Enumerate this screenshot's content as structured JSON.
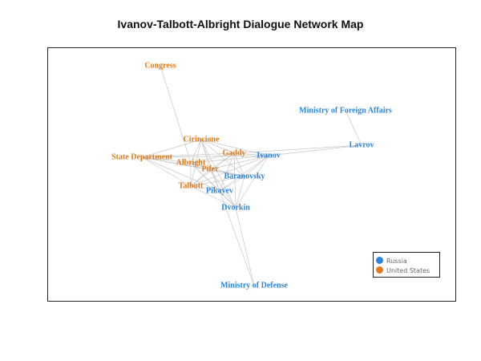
{
  "title": "Ivanov-Talbott-Albright Dialogue Network Map",
  "colors": {
    "russia": "#2a86e0",
    "united_states": "#e07a1a",
    "edge": "#c8c8c8"
  },
  "legend": [
    {
      "label": "Russia",
      "group": "russia"
    },
    {
      "label": "United States",
      "group": "united_states"
    }
  ],
  "nodes": [
    {
      "id": "congress",
      "label": "Congress",
      "group": "united_states"
    },
    {
      "id": "mfa",
      "label": "Ministry of Foreign Affairs",
      "group": "russia"
    },
    {
      "id": "lavrov",
      "label": "Lavrov",
      "group": "russia"
    },
    {
      "id": "cirincione",
      "label": "Cirincione",
      "group": "united_states"
    },
    {
      "id": "gaddy",
      "label": "Gaddy",
      "group": "united_states"
    },
    {
      "id": "ivanov",
      "label": "Ivanov",
      "group": "russia"
    },
    {
      "id": "state",
      "label": "State Department",
      "group": "united_states"
    },
    {
      "id": "albright",
      "label": "Albright",
      "group": "united_states"
    },
    {
      "id": "pifer",
      "label": "Pifer",
      "group": "united_states"
    },
    {
      "id": "baranovsky",
      "label": "Baranovsky",
      "group": "russia"
    },
    {
      "id": "talbott",
      "label": "Talbott",
      "group": "united_states"
    },
    {
      "id": "pikayev",
      "label": "Pikayev",
      "group": "russia"
    },
    {
      "id": "dvorkin",
      "label": "Dvorkin",
      "group": "russia"
    },
    {
      "id": "mod",
      "label": "Ministry of Defense",
      "group": "russia"
    }
  ],
  "edges": [
    [
      "congress",
      "albright"
    ],
    [
      "mfa",
      "lavrov"
    ],
    [
      "lavrov",
      "ivanov"
    ],
    [
      "lavrov",
      "gaddy"
    ],
    [
      "mod",
      "dvorkin"
    ],
    [
      "mod",
      "pikayev"
    ],
    [
      "cirincione",
      "gaddy"
    ],
    [
      "cirincione",
      "ivanov"
    ],
    [
      "cirincione",
      "state"
    ],
    [
      "cirincione",
      "albright"
    ],
    [
      "cirincione",
      "pifer"
    ],
    [
      "cirincione",
      "baranovsky"
    ],
    [
      "cirincione",
      "talbott"
    ],
    [
      "cirincione",
      "pikayev"
    ],
    [
      "cirincione",
      "dvorkin"
    ],
    [
      "gaddy",
      "ivanov"
    ],
    [
      "gaddy",
      "state"
    ],
    [
      "gaddy",
      "albright"
    ],
    [
      "gaddy",
      "pifer"
    ],
    [
      "gaddy",
      "baranovsky"
    ],
    [
      "gaddy",
      "talbott"
    ],
    [
      "gaddy",
      "pikayev"
    ],
    [
      "gaddy",
      "dvorkin"
    ],
    [
      "ivanov",
      "state"
    ],
    [
      "ivanov",
      "albright"
    ],
    [
      "ivanov",
      "pifer"
    ],
    [
      "ivanov",
      "baranovsky"
    ],
    [
      "ivanov",
      "talbott"
    ],
    [
      "ivanov",
      "pikayev"
    ],
    [
      "ivanov",
      "dvorkin"
    ],
    [
      "state",
      "albright"
    ],
    [
      "state",
      "pifer"
    ],
    [
      "state",
      "baranovsky"
    ],
    [
      "state",
      "talbott"
    ],
    [
      "state",
      "pikayev"
    ],
    [
      "albright",
      "pifer"
    ],
    [
      "albright",
      "baranovsky"
    ],
    [
      "albright",
      "talbott"
    ],
    [
      "albright",
      "pikayev"
    ],
    [
      "albright",
      "dvorkin"
    ],
    [
      "pifer",
      "baranovsky"
    ],
    [
      "pifer",
      "talbott"
    ],
    [
      "pifer",
      "pikayev"
    ],
    [
      "pifer",
      "dvorkin"
    ],
    [
      "baranovsky",
      "talbott"
    ],
    [
      "baranovsky",
      "pikayev"
    ],
    [
      "baranovsky",
      "dvorkin"
    ],
    [
      "talbott",
      "pikayev"
    ],
    [
      "talbott",
      "dvorkin"
    ],
    [
      "pikayev",
      "dvorkin"
    ]
  ]
}
